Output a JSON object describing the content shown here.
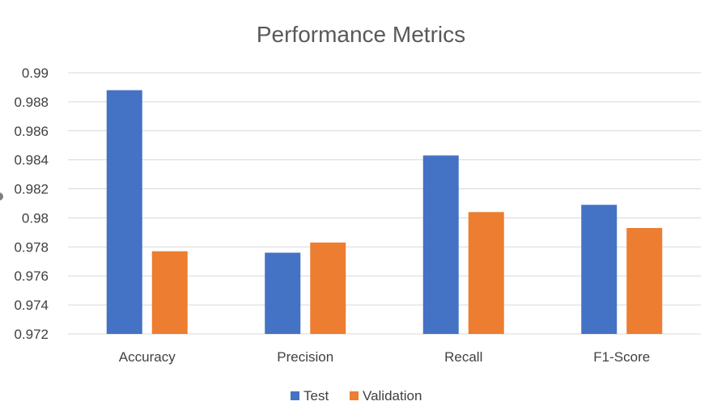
{
  "chart_data": {
    "type": "bar",
    "title": "Performance Metrics",
    "xlabel": "",
    "ylabel": "",
    "categories": [
      "Accuracy",
      "Precision",
      "Recall",
      "F1-Score"
    ],
    "series": [
      {
        "name": "Test",
        "color": "#4472C4",
        "values": [
          0.9888,
          0.9776,
          0.9843,
          0.9809
        ]
      },
      {
        "name": "Validation",
        "color": "#ED7D31",
        "values": [
          0.9777,
          0.9783,
          0.9804,
          0.9793
        ]
      }
    ],
    "ylim": [
      0.972,
      0.99
    ],
    "yticks": [
      "0.972",
      "0.974",
      "0.976",
      "0.978",
      "0.98",
      "0.982",
      "0.984",
      "0.986",
      "0.988",
      "0.99"
    ],
    "grid": true,
    "legend_position": "bottom"
  }
}
